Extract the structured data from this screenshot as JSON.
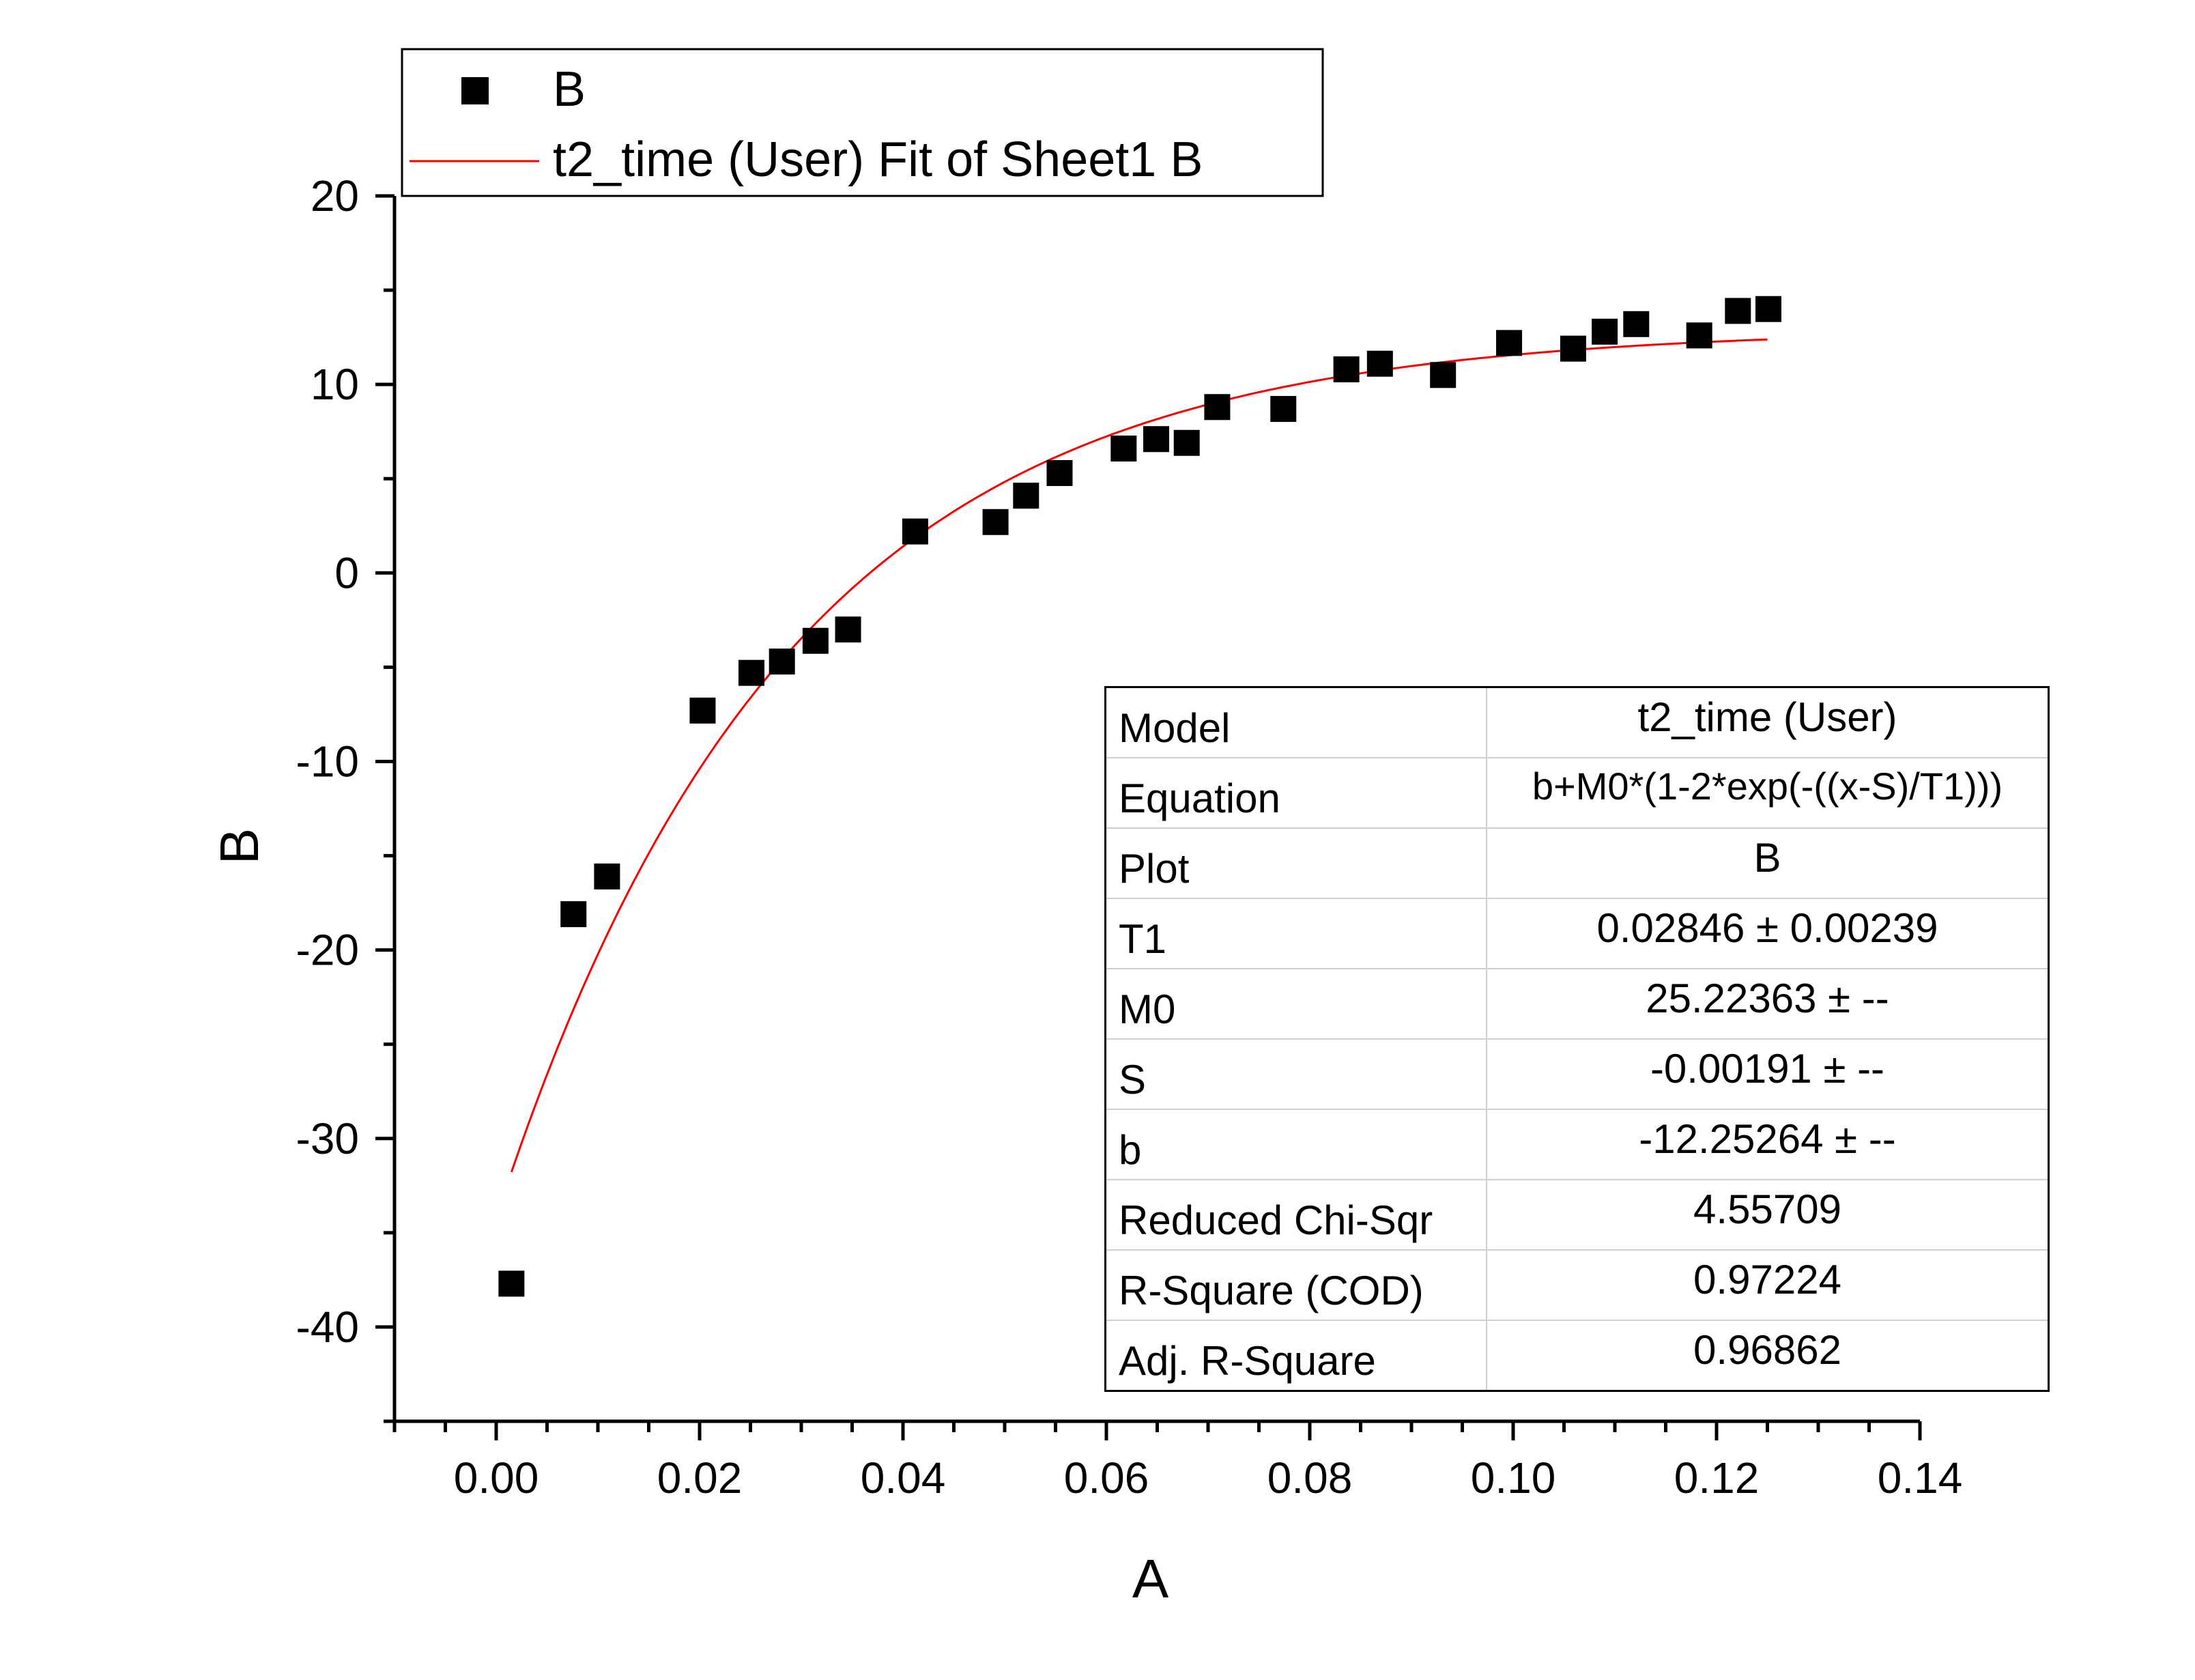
{
  "chart_data": {
    "type": "scatter",
    "xlabel": "A",
    "ylabel": "B",
    "xlim": [
      -0.01,
      0.14
    ],
    "ylim": [
      -45,
      20
    ],
    "x_ticks": [
      "0.00",
      "0.02",
      "0.04",
      "0.06",
      "0.08",
      "0.10",
      "0.12",
      "0.14"
    ],
    "y_ticks": [
      "-40",
      "-30",
      "-20",
      "-10",
      "0",
      "10",
      "20"
    ],
    "grid": false,
    "legend_position": "top-left",
    "series": [
      {
        "name": "B",
        "kind": "scatter",
        "marker": "square",
        "color": "#000000",
        "x": [
          0.0015,
          0.0076,
          0.0109,
          0.0203,
          0.0251,
          0.0281,
          0.0314,
          0.0346,
          0.0412,
          0.0491,
          0.0521,
          0.0554,
          0.0617,
          0.0649,
          0.0679,
          0.0709,
          0.0774,
          0.0836,
          0.0869,
          0.0931,
          0.0996,
          0.1059,
          0.109,
          0.1121,
          0.1183,
          0.1221,
          0.1251
        ],
        "y": [
          -37.7,
          -18.1,
          -16.1,
          -7.3,
          -5.3,
          -4.7,
          -3.6,
          -3.0,
          2.2,
          2.7,
          4.1,
          5.3,
          6.6,
          7.1,
          6.9,
          8.8,
          8.7,
          10.8,
          11.1,
          10.5,
          12.2,
          11.9,
          12.8,
          13.2,
          12.6,
          13.9,
          14.0
        ]
      },
      {
        "name": "t2_time (User) Fit of Sheet1 B",
        "kind": "line",
        "color": "#ff0000",
        "function": "b+M0*(1-2*exp(-((x-S)/T1)))",
        "x_range": [
          0.0015,
          0.125
        ]
      }
    ],
    "fit_params": {
      "T1": 0.02846,
      "M0": 25.22363,
      "S": -0.00191,
      "b": -12.25264
    },
    "stats_table": [
      [
        "Model",
        "t2_time (User)"
      ],
      [
        "Equation",
        "b+M0*(1-2*exp(-((x-S)/T1)))"
      ],
      [
        "Plot",
        "B"
      ],
      [
        "T1",
        "0.02846 ± 0.00239"
      ],
      [
        "M0",
        "25.22363 ± --"
      ],
      [
        "S",
        "-0.00191 ± --"
      ],
      [
        "b",
        "-12.25264 ± --"
      ],
      [
        "Reduced Chi-Sqr",
        "4.55709"
      ],
      [
        "R-Square (COD)",
        "0.97224"
      ],
      [
        "Adj. R-Square",
        "0.96862"
      ]
    ]
  }
}
